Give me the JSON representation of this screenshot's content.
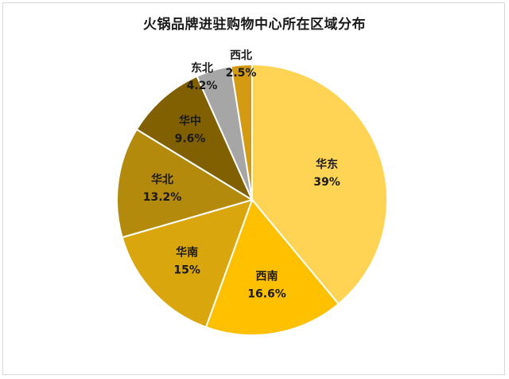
{
  "chart_data": {
    "type": "pie",
    "title": "火锅品牌进驻购物中心所在区域分布",
    "categories": [
      "华东",
      "西南",
      "华南",
      "华北",
      "华中",
      "东北",
      "西北"
    ],
    "values": [
      39,
      16.6,
      15,
      13.2,
      9.6,
      4.2,
      2.5
    ],
    "value_labels": [
      "39%",
      "16.6%",
      "15%",
      "13.2%",
      "9.6%",
      "4.2%",
      "2.5%"
    ],
    "colors": [
      "#FFD455",
      "#FFC000",
      "#D9A60E",
      "#B48A0C",
      "#806000",
      "#A6A6A6",
      "#D49A12"
    ],
    "legend": "none",
    "start": "12 o'clock, clockwise"
  }
}
